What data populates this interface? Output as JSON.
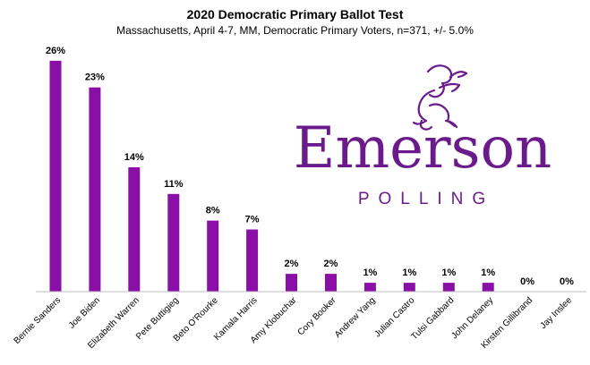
{
  "colors": {
    "bar": "#8a0fa6",
    "logo": "#6b1a8c",
    "axis": "#bfbfbf"
  },
  "logo": {
    "word": "Emerson",
    "sub": "POLLING",
    "icon": "lion-rampant-crest-icon"
  },
  "chart_data": {
    "type": "bar",
    "title": "2020 Democratic Primary Ballot Test",
    "subtitle": "Massachusetts, April 4-7, MM, Democratic Primary Voters, n=371, +/- 5.0%",
    "xlabel": "",
    "ylabel": "",
    "ylim": [
      0,
      27
    ],
    "grid": false,
    "categories": [
      "Bernie Sanders",
      "Joe Biden",
      "Elizabeth Warren",
      "Pete Buttigieg",
      "Beto O'Rourke",
      "Kamala Harris",
      "Amy Klobuchar",
      "Cory Booker",
      "Andrew Yang",
      "Julian Castro",
      "Tulsi Gabbard",
      "John Delaney",
      "Kirsten Gillibrand",
      "Jay Inslee"
    ],
    "values": [
      26,
      23,
      14,
      11,
      8,
      7,
      2,
      2,
      1,
      1,
      1,
      1,
      0,
      0
    ],
    "data_labels": [
      "26%",
      "23%",
      "14%",
      "11%",
      "8%",
      "7%",
      "2%",
      "2%",
      "1%",
      "1%",
      "1%",
      "1%",
      "0%",
      "0%"
    ]
  }
}
